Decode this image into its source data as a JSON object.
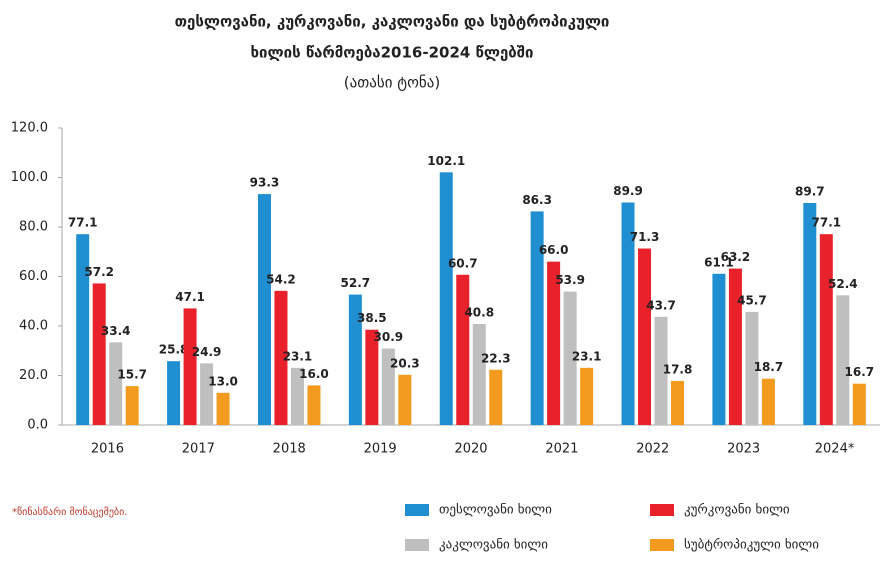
{
  "chart_data": {
    "type": "bar",
    "title": "თესლოვანი, კურკოვანი, კაკლოვანი და სუბტროპიკული",
    "title_line2": "ხილის წარმოება2016-2024 წლებში",
    "subtitle": "(ათასი ტონა)",
    "note": "*წინასწარი მონაცემები.",
    "categories": [
      "2016",
      "2017",
      "2018",
      "2019",
      "2020",
      "2021",
      "2022",
      "2023",
      "2024*"
    ],
    "series": [
      {
        "name": "თესლოვანი ხილი",
        "color": "#1f8fd1",
        "values": [
          77.1,
          25.8,
          93.3,
          52.7,
          102.1,
          86.3,
          89.9,
          61.1,
          89.7
        ],
        "value_labels": [
          "77.1",
          "25.8",
          "93.3",
          "52.7",
          "102.1",
          "86.3",
          "89.9",
          "61.1",
          "89.7"
        ]
      },
      {
        "name": "კურკოვანი ხილი",
        "color": "#e8212b",
        "values": [
          57.2,
          47.1,
          54.2,
          38.5,
          60.7,
          66.0,
          71.3,
          63.2,
          77.1
        ],
        "value_labels": [
          "57.2",
          "47.1",
          "54.2",
          "38.5",
          "60.7",
          "66.0",
          "71.3",
          "63.2",
          "77.1"
        ]
      },
      {
        "name": "კაკლოვანი ხილი",
        "color": "#bfbfbf",
        "values": [
          33.4,
          24.9,
          23.1,
          30.9,
          40.8,
          53.9,
          43.7,
          45.7,
          52.4
        ],
        "value_labels": [
          "33.4",
          "24.9",
          "23.1",
          "30.9",
          "40.8",
          "53.9",
          "43.7",
          "45.7",
          "52.4"
        ]
      },
      {
        "name": "სუბტროპიკული ხილი",
        "color": "#f39b1f",
        "values": [
          15.7,
          13.0,
          16.0,
          20.3,
          22.3,
          23.1,
          17.8,
          18.7,
          16.7
        ],
        "value_labels": [
          "15.7",
          "13.0",
          "16.0",
          "20.3",
          "22.3",
          "23.1",
          "17.8",
          "18.7",
          "16.7"
        ]
      }
    ],
    "ylim": [
      0,
      120
    ],
    "yticks": [
      {
        "value": 0,
        "label": "0.0"
      },
      {
        "value": 20,
        "label": "20.0"
      },
      {
        "value": 40,
        "label": "40.0"
      },
      {
        "value": 60,
        "label": "60.0"
      },
      {
        "value": 80,
        "label": "80.0"
      },
      {
        "value": 100,
        "label": "100.0"
      },
      {
        "value": 120,
        "label": "120.0"
      }
    ]
  }
}
